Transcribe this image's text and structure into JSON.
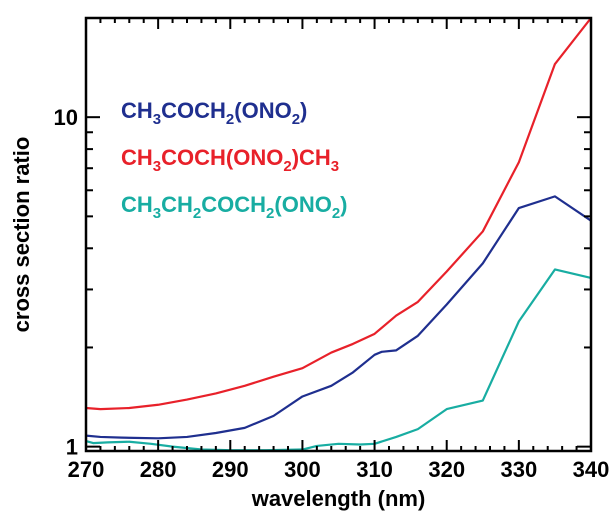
{
  "chart_data": {
    "type": "line",
    "title": "",
    "xlabel": "wavelength (nm)",
    "ylabel": "cross section ratio",
    "xlim": [
      270,
      340
    ],
    "ylim": [
      0.97,
      20
    ],
    "yscale": "log",
    "x_ticks": [
      270,
      280,
      290,
      300,
      310,
      320,
      330,
      340
    ],
    "x_tick_labels": [
      "270",
      "280",
      "290",
      "300",
      "310",
      "320",
      "330",
      "340"
    ],
    "y_ticks": [
      1,
      10
    ],
    "y_tick_labels": [
      "1",
      "10"
    ],
    "grid": false,
    "legend_position": "top-left",
    "series": [
      {
        "name_parts": [
          [
            "CH",
            ""
          ],
          [
            "3",
            "sub"
          ],
          [
            "COCH",
            ""
          ],
          [
            "2",
            "sub"
          ],
          [
            "(ONO",
            ""
          ],
          [
            "2",
            "sub"
          ],
          [
            ")",
            ""
          ]
        ],
        "color": "#1f2f8f",
        "points": [
          [
            270,
            1.08
          ],
          [
            272,
            1.07
          ],
          [
            275,
            1.065
          ],
          [
            280,
            1.06
          ],
          [
            284,
            1.07
          ],
          [
            288,
            1.1
          ],
          [
            292,
            1.14
          ],
          [
            296,
            1.24
          ],
          [
            300,
            1.42
          ],
          [
            304,
            1.53
          ],
          [
            307,
            1.68
          ],
          [
            310,
            1.9
          ],
          [
            311,
            1.94
          ],
          [
            313,
            1.96
          ],
          [
            316,
            2.17
          ],
          [
            320,
            2.7
          ],
          [
            325,
            3.6
          ],
          [
            330,
            5.3
          ],
          [
            335,
            5.75
          ],
          [
            340,
            4.85
          ]
        ]
      },
      {
        "name_parts": [
          [
            "CH",
            ""
          ],
          [
            "3",
            "sub"
          ],
          [
            "COCH(ONO",
            ""
          ],
          [
            "2",
            "sub"
          ],
          [
            ")CH",
            ""
          ],
          [
            "3",
            "sub"
          ]
        ],
        "color": "#e8212a",
        "points": [
          [
            270,
            1.31
          ],
          [
            272,
            1.3
          ],
          [
            276,
            1.31
          ],
          [
            280,
            1.34
          ],
          [
            284,
            1.39
          ],
          [
            288,
            1.45
          ],
          [
            292,
            1.53
          ],
          [
            296,
            1.63
          ],
          [
            300,
            1.73
          ],
          [
            304,
            1.93
          ],
          [
            307,
            2.05
          ],
          [
            310,
            2.2
          ],
          [
            313,
            2.5
          ],
          [
            316,
            2.75
          ],
          [
            320,
            3.4
          ],
          [
            325,
            4.5
          ],
          [
            330,
            7.3
          ],
          [
            335,
            14.5
          ],
          [
            340,
            20
          ]
        ]
      },
      {
        "name_parts": [
          [
            "CH",
            ""
          ],
          [
            "3",
            "sub"
          ],
          [
            "CH",
            ""
          ],
          [
            "2",
            "sub"
          ],
          [
            "COCH",
            ""
          ],
          [
            "2",
            "sub"
          ],
          [
            "(ONO",
            ""
          ],
          [
            "2",
            "sub"
          ],
          [
            ")",
            ""
          ]
        ],
        "color": "#18ada2",
        "points": [
          [
            270,
            1.04
          ],
          [
            271,
            1.025
          ],
          [
            273,
            1.03
          ],
          [
            276,
            1.035
          ],
          [
            279,
            1.02
          ],
          [
            282,
            1.0
          ],
          [
            286,
            0.98
          ],
          [
            290,
            0.975
          ],
          [
            295,
            0.975
          ],
          [
            300,
            0.98
          ],
          [
            302,
            1.005
          ],
          [
            305,
            1.02
          ],
          [
            308,
            1.015
          ],
          [
            310,
            1.02
          ],
          [
            313,
            1.07
          ],
          [
            316,
            1.13
          ],
          [
            320,
            1.3
          ],
          [
            325,
            1.38
          ],
          [
            330,
            2.4
          ],
          [
            335,
            3.45
          ],
          [
            340,
            3.25
          ]
        ]
      }
    ]
  }
}
